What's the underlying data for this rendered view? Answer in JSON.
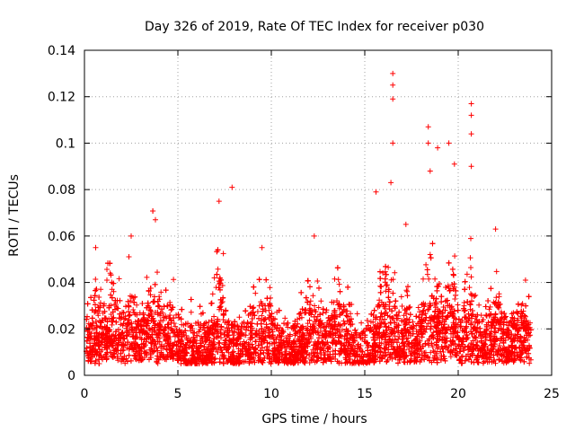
{
  "chart_data": {
    "type": "scatter",
    "title": "Day 326 of 2019, Rate Of TEC Index for receiver p030",
    "xlabel": "GPS time / hours",
    "ylabel": "ROTI / TECUs",
    "xlim": [
      0,
      25
    ],
    "ylim": [
      0,
      0.14
    ],
    "xticks": [
      "0",
      "5",
      "10",
      "15",
      "20",
      "25"
    ],
    "yticks": [
      "0",
      "0.02",
      "0.04",
      "0.06",
      "0.08",
      "0.1",
      "0.12",
      "0.14"
    ],
    "grid": true,
    "marker": "+",
    "series_color": "#ff0000",
    "notable_points": [
      {
        "x": 0.6,
        "y": 0.055
      },
      {
        "x": 2.5,
        "y": 0.06
      },
      {
        "x": 3.8,
        "y": 0.067
      },
      {
        "x": 7.2,
        "y": 0.075
      },
      {
        "x": 7.9,
        "y": 0.081
      },
      {
        "x": 9.5,
        "y": 0.055
      },
      {
        "x": 12.3,
        "y": 0.06
      },
      {
        "x": 15.6,
        "y": 0.079
      },
      {
        "x": 16.4,
        "y": 0.083
      },
      {
        "x": 16.5,
        "y": 0.1
      },
      {
        "x": 16.5,
        "y": 0.119
      },
      {
        "x": 16.5,
        "y": 0.125
      },
      {
        "x": 16.5,
        "y": 0.13
      },
      {
        "x": 17.2,
        "y": 0.065
      },
      {
        "x": 18.4,
        "y": 0.107
      },
      {
        "x": 18.4,
        "y": 0.1
      },
      {
        "x": 18.5,
        "y": 0.088
      },
      {
        "x": 18.9,
        "y": 0.098
      },
      {
        "x": 19.5,
        "y": 0.1
      },
      {
        "x": 19.8,
        "y": 0.091
      },
      {
        "x": 20.7,
        "y": 0.117
      },
      {
        "x": 20.7,
        "y": 0.112
      },
      {
        "x": 20.7,
        "y": 0.104
      },
      {
        "x": 20.7,
        "y": 0.09
      },
      {
        "x": 22.0,
        "y": 0.063
      },
      {
        "x": 23.6,
        "y": 0.041
      }
    ],
    "activity_peaks": [
      {
        "center": 0.5,
        "width": 0.5,
        "height": 0.03
      },
      {
        "center": 1.5,
        "width": 0.6,
        "height": 0.035
      },
      {
        "center": 2.5,
        "width": 0.4,
        "height": 0.04
      },
      {
        "center": 3.7,
        "width": 0.6,
        "height": 0.05
      },
      {
        "center": 4.6,
        "width": 0.4,
        "height": 0.03
      },
      {
        "center": 7.2,
        "width": 0.4,
        "height": 0.055
      },
      {
        "center": 9.5,
        "width": 0.8,
        "height": 0.032
      },
      {
        "center": 12.3,
        "width": 0.8,
        "height": 0.03
      },
      {
        "center": 13.7,
        "width": 0.7,
        "height": 0.028
      },
      {
        "center": 16.2,
        "width": 0.6,
        "height": 0.05
      },
      {
        "center": 17.2,
        "width": 0.4,
        "height": 0.03
      },
      {
        "center": 18.6,
        "width": 0.6,
        "height": 0.058
      },
      {
        "center": 19.6,
        "width": 0.5,
        "height": 0.05
      },
      {
        "center": 20.6,
        "width": 0.4,
        "height": 0.05
      },
      {
        "center": 22.0,
        "width": 0.6,
        "height": 0.035
      },
      {
        "center": 23.5,
        "width": 0.6,
        "height": 0.025
      }
    ],
    "baseline": {
      "x_start": 0.1,
      "x_end": 23.9,
      "typical_min": 0.005,
      "typical_spread": 0.018
    }
  }
}
